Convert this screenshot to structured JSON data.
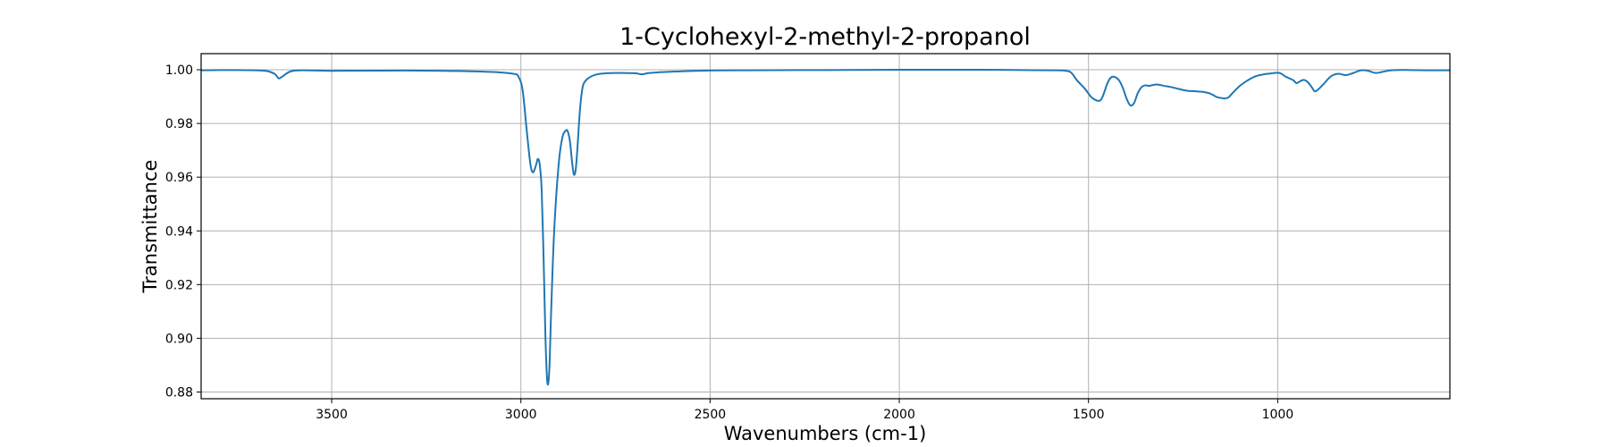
{
  "chart_data": {
    "type": "line",
    "title": "1-Cyclohexyl-2-methyl-2-propanol",
    "xlabel": "Wavenumbers (cm-1)",
    "ylabel": "Transmittance",
    "xlim": [
      3845,
      545
    ],
    "ylim": [
      0.8775,
      1.006
    ],
    "x_ticks": [
      3500,
      3000,
      2500,
      2000,
      1500,
      1000
    ],
    "y_ticks": [
      0.88,
      0.9,
      0.92,
      0.94,
      0.96,
      0.98,
      1.0
    ],
    "x_tick_labels": [
      "3500",
      "3000",
      "2500",
      "2000",
      "1500",
      "1000"
    ],
    "y_tick_labels": [
      "0.88",
      "0.90",
      "0.92",
      "0.94",
      "0.96",
      "0.98",
      "1.00"
    ],
    "grid": true,
    "series": [
      {
        "color": "#1f77b4",
        "x": [
          3845,
          3750,
          3700,
          3670,
          3650,
          3640,
          3630,
          3610,
          3580,
          3500,
          3300,
          3100,
          3020,
          3005,
          2995,
          2985,
          2975,
          2968,
          2960,
          2955,
          2950,
          2945,
          2940,
          2935,
          2930,
          2925,
          2920,
          2912,
          2900,
          2890,
          2880,
          2875,
          2870,
          2865,
          2860,
          2855,
          2850,
          2845,
          2840,
          2835,
          2825,
          2810,
          2790,
          2750,
          2700,
          2680,
          2660,
          2600,
          2500,
          2400,
          2200,
          2000,
          1800,
          1600,
          1560,
          1545,
          1530,
          1510,
          1490,
          1470,
          1460,
          1450,
          1440,
          1430,
          1420,
          1410,
          1400,
          1390,
          1380,
          1370,
          1360,
          1350,
          1340,
          1320,
          1300,
          1280,
          1260,
          1240,
          1220,
          1200,
          1180,
          1160,
          1150,
          1140,
          1130,
          1120,
          1100,
          1080,
          1060,
          1040,
          1020,
          1000,
          990,
          980,
          960,
          950,
          940,
          930,
          920,
          910,
          900,
          880,
          860,
          840,
          820,
          800,
          780,
          760,
          740,
          700,
          650,
          600,
          545
        ],
        "y": [
          0.9998,
          0.9999,
          0.9998,
          0.9995,
          0.9984,
          0.9968,
          0.9975,
          0.9993,
          0.9998,
          0.9996,
          0.9997,
          0.9993,
          0.9985,
          0.997,
          0.992,
          0.978,
          0.965,
          0.9618,
          0.9645,
          0.9668,
          0.9645,
          0.955,
          0.93,
          0.9,
          0.8835,
          0.888,
          0.91,
          0.94,
          0.965,
          0.975,
          0.9775,
          0.9765,
          0.973,
          0.966,
          0.961,
          0.963,
          0.972,
          0.983,
          0.9905,
          0.9945,
          0.9965,
          0.9978,
          0.9985,
          0.9988,
          0.9987,
          0.9983,
          0.9988,
          0.9993,
          0.9997,
          0.9998,
          0.9999,
          1.0,
          1.0,
          0.9998,
          0.9996,
          0.9988,
          0.996,
          0.993,
          0.9895,
          0.9885,
          0.991,
          0.995,
          0.9972,
          0.9973,
          0.9962,
          0.9935,
          0.9895,
          0.9868,
          0.9875,
          0.9912,
          0.9935,
          0.9942,
          0.994,
          0.9945,
          0.994,
          0.9935,
          0.9928,
          0.9922,
          0.992,
          0.9918,
          0.9912,
          0.9898,
          0.9895,
          0.9893,
          0.9897,
          0.9912,
          0.994,
          0.996,
          0.9975,
          0.9982,
          0.9986,
          0.9989,
          0.9985,
          0.9975,
          0.9962,
          0.995,
          0.9958,
          0.9962,
          0.9953,
          0.9935,
          0.992,
          0.9945,
          0.9975,
          0.9985,
          0.998,
          0.9988,
          0.9998,
          0.9996,
          0.9988,
          0.9998,
          0.9999,
          0.9998,
          0.9998
        ]
      }
    ]
  }
}
